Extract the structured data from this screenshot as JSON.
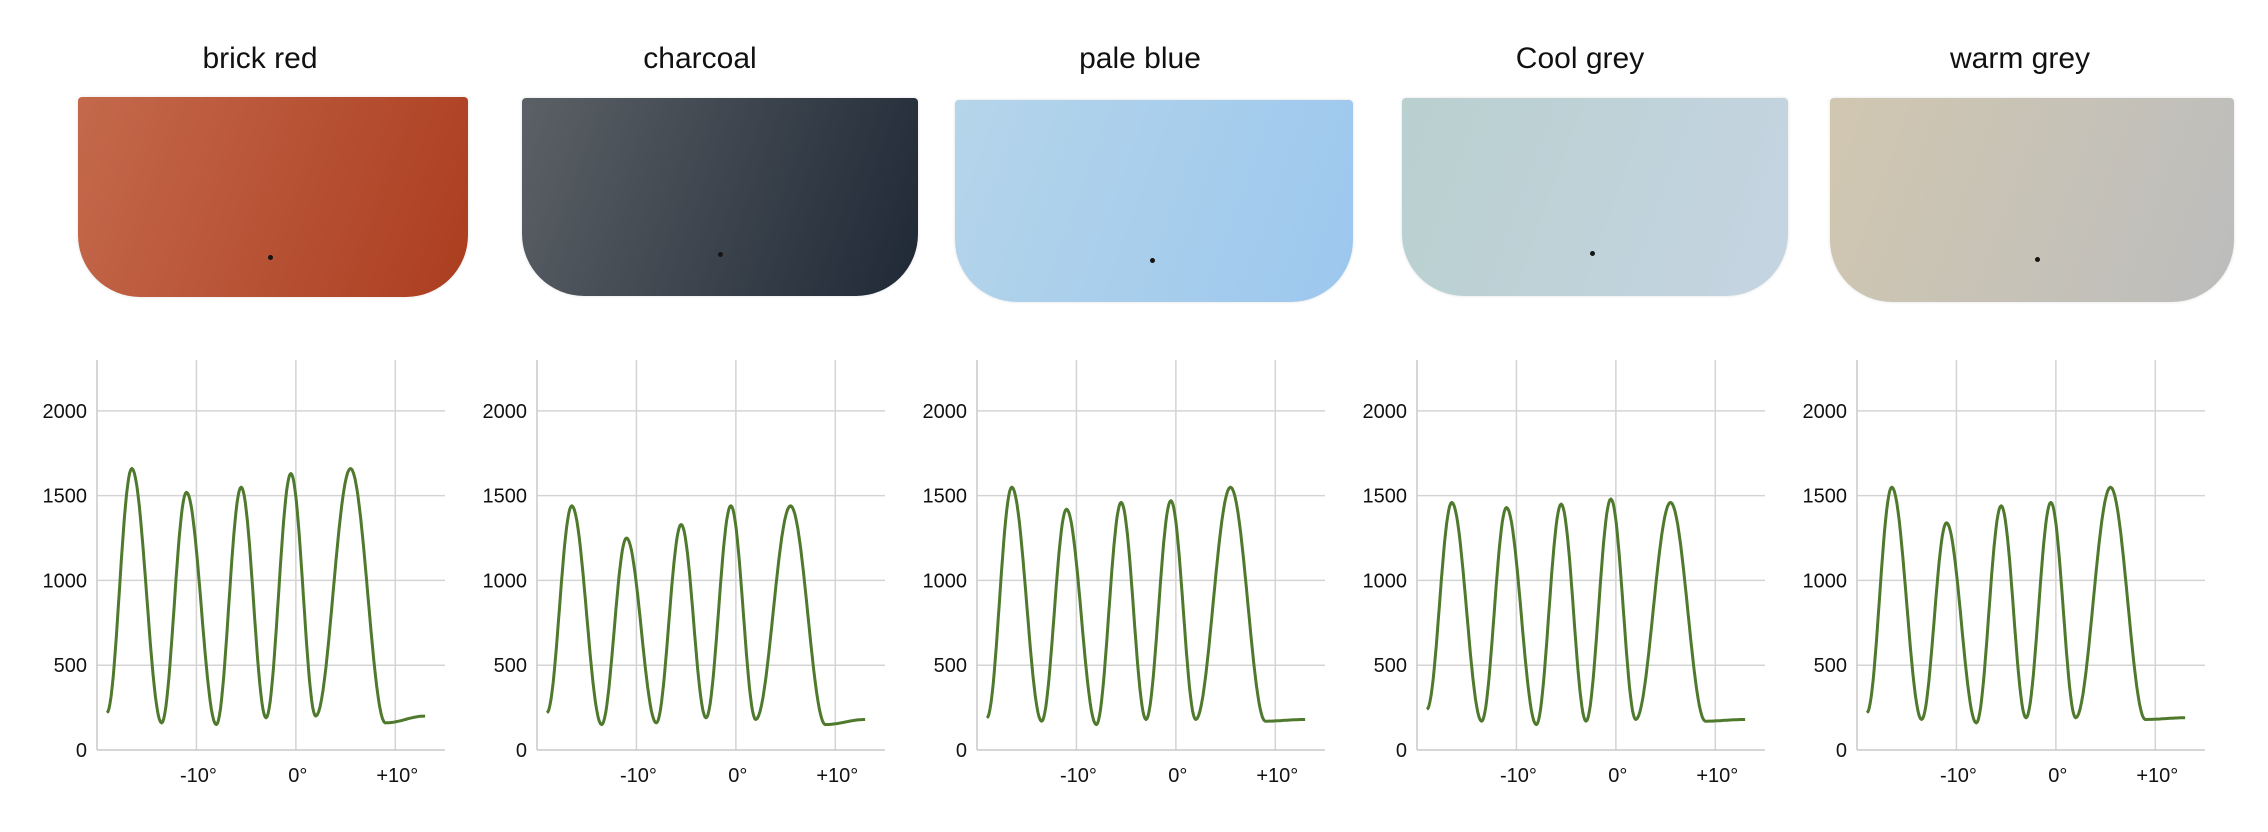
{
  "panels": [
    {
      "title": "brick red",
      "colors": {
        "start": "#c4694c",
        "end": "#ac3d1f"
      },
      "chart_data": {
        "type": "line",
        "yticks": [
          0,
          500,
          1000,
          1500,
          2000
        ],
        "xticks": [
          {
            "value": -10,
            "label": "-10°"
          },
          {
            "value": 0,
            "label": "0°"
          },
          {
            "value": 10,
            "label": "+10°"
          }
        ],
        "xlim": [
          -20,
          15
        ],
        "ylim": [
          0,
          2300
        ],
        "series": [
          {
            "color": "#4f7a2d",
            "x": [
              -19,
              -16.5,
              -13.5,
              -11,
              -8,
              -5.5,
              -3,
              -0.5,
              2,
              5.5,
              9,
              13
            ],
            "y": [
              220,
              1660,
              160,
              1520,
              150,
              1550,
              190,
              1630,
              200,
              1660,
              160,
              200
            ]
          }
        ]
      }
    },
    {
      "title": "charcoal",
      "colors": {
        "start": "#5b6166",
        "end": "#1f2836"
      },
      "chart_data": {
        "type": "line",
        "yticks": [
          0,
          500,
          1000,
          1500,
          2000
        ],
        "xticks": [
          {
            "value": -10,
            "label": "-10°"
          },
          {
            "value": 0,
            "label": "0°"
          },
          {
            "value": 10,
            "label": "+10°"
          }
        ],
        "xlim": [
          -20,
          15
        ],
        "ylim": [
          0,
          2300
        ],
        "series": [
          {
            "color": "#4f7a2d",
            "x": [
              -19,
              -16.5,
              -13.5,
              -11,
              -8,
              -5.5,
              -3,
              -0.5,
              2,
              5.5,
              9,
              13
            ],
            "y": [
              220,
              1440,
              150,
              1250,
              160,
              1330,
              190,
              1440,
              180,
              1440,
              150,
              180
            ]
          }
        ]
      }
    },
    {
      "title": "pale blue",
      "colors": {
        "start": "#b5d5ea",
        "end": "#9cc7ee"
      },
      "chart_data": {
        "type": "line",
        "yticks": [
          0,
          500,
          1000,
          1500,
          2000
        ],
        "xticks": [
          {
            "value": -10,
            "label": "-10°"
          },
          {
            "value": 0,
            "label": "0°"
          },
          {
            "value": 10,
            "label": "+10°"
          }
        ],
        "xlim": [
          -20,
          15
        ],
        "ylim": [
          0,
          2300
        ],
        "series": [
          {
            "color": "#4f7a2d",
            "x": [
              -19,
              -16.5,
              -13.5,
              -11,
              -8,
              -5.5,
              -3,
              -0.5,
              2,
              5.5,
              9,
              13
            ],
            "y": [
              190,
              1550,
              170,
              1420,
              150,
              1460,
              180,
              1470,
              180,
              1550,
              170,
              180
            ]
          }
        ]
      }
    },
    {
      "title": "Cool grey",
      "colors": {
        "start": "#b9d0cf",
        "end": "#c5d4e2"
      },
      "chart_data": {
        "type": "line",
        "yticks": [
          0,
          500,
          1000,
          1500,
          2000
        ],
        "xticks": [
          {
            "value": -10,
            "label": "-10°"
          },
          {
            "value": 0,
            "label": "0°"
          },
          {
            "value": 10,
            "label": "+10°"
          }
        ],
        "xlim": [
          -20,
          15
        ],
        "ylim": [
          0,
          2300
        ],
        "series": [
          {
            "color": "#4f7a2d",
            "x": [
              -19,
              -16.5,
              -13.5,
              -11,
              -8,
              -5.5,
              -3,
              -0.5,
              2,
              5.5,
              9,
              13
            ],
            "y": [
              240,
              1460,
              170,
              1430,
              150,
              1450,
              170,
              1480,
              180,
              1460,
              170,
              180
            ]
          }
        ]
      }
    },
    {
      "title": "warm grey",
      "colors": {
        "start": "#d1c7b0",
        "end": "#bcbdbd"
      },
      "chart_data": {
        "type": "line",
        "yticks": [
          0,
          500,
          1000,
          1500,
          2000
        ],
        "xticks": [
          {
            "value": -10,
            "label": "-10°"
          },
          {
            "value": 0,
            "label": "0°"
          },
          {
            "value": 10,
            "label": "+10°"
          }
        ],
        "xlim": [
          -20,
          15
        ],
        "ylim": [
          0,
          2300
        ],
        "series": [
          {
            "color": "#4f7a2d",
            "x": [
              -19,
              -16.5,
              -13.5,
              -11,
              -8,
              -5.5,
              -3,
              -0.5,
              2,
              5.5,
              9,
              13
            ],
            "y": [
              220,
              1550,
              180,
              1340,
              160,
              1440,
              190,
              1460,
              190,
              1550,
              180,
              190
            ]
          }
        ]
      }
    }
  ]
}
